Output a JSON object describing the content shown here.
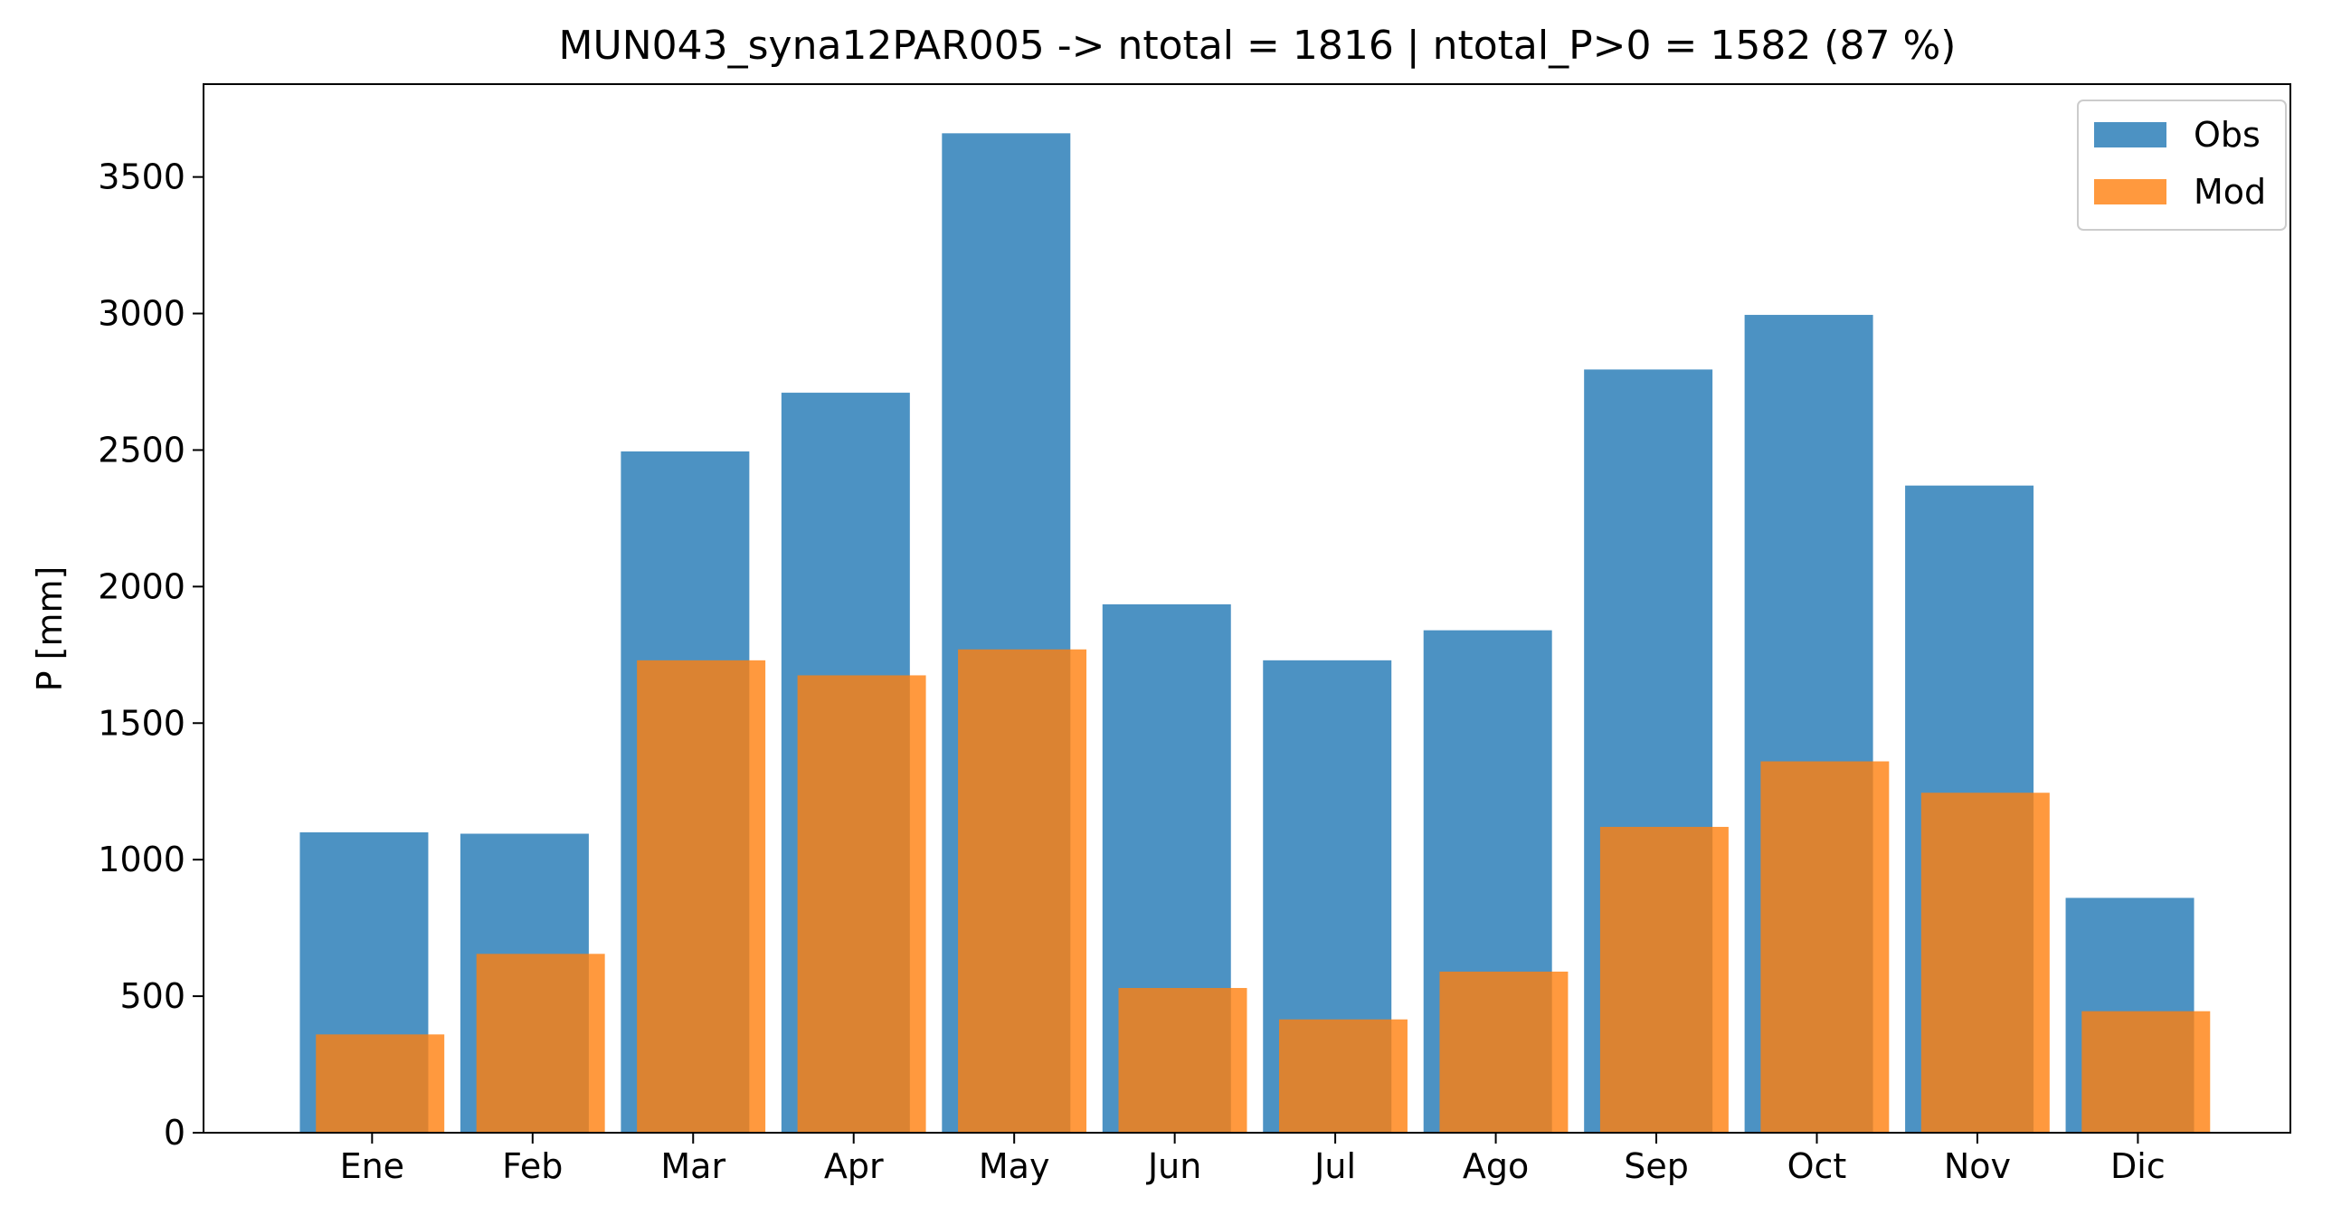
{
  "chart_data": {
    "type": "bar",
    "title": "MUN043_syna12PAR005 -> ntotal = 1816 | ntotal_P>0 = 1582 (87 %)",
    "xlabel": "",
    "ylabel": "P [mm]",
    "categories": [
      "Ene",
      "Feb",
      "Mar",
      "Apr",
      "May",
      "Jun",
      "Jul",
      "Ago",
      "Sep",
      "Oct",
      "Nov",
      "Dic"
    ],
    "series": [
      {
        "name": "Obs",
        "color": "#1f77b4",
        "opacity": 0.8,
        "values": [
          1100,
          1095,
          2495,
          2710,
          3660,
          1935,
          1730,
          1840,
          2795,
          2995,
          2370,
          860
        ]
      },
      {
        "name": "Mod",
        "color": "#ff7f0e",
        "opacity": 0.8,
        "values": [
          360,
          655,
          1730,
          1675,
          1770,
          530,
          415,
          590,
          1120,
          1360,
          1245,
          445
        ]
      }
    ],
    "ylim": [
      0,
      3840
    ],
    "yticks": [
      0,
      500,
      1000,
      1500,
      2000,
      2500,
      3000,
      3500
    ],
    "legend": "top-right",
    "grid": false
  }
}
